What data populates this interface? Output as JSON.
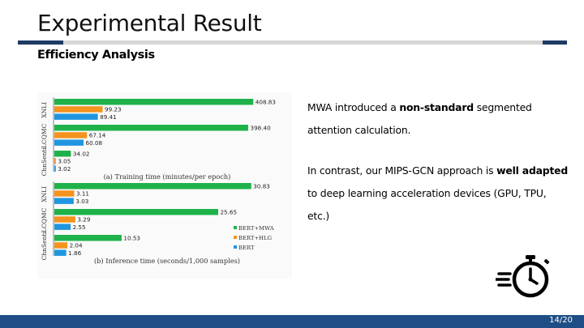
{
  "slide": {
    "title": "Experimental Result",
    "subtitle": "Efficiency Analysis",
    "page": "14/20",
    "colors": {
      "accent": "#1f3b64",
      "footer": "#1f4e86",
      "rule": "#d6d6d6"
    }
  },
  "text": {
    "p1": [
      {
        "t": "MWA introduced a ",
        "b": false
      },
      {
        "t": "non-standard",
        "b": true
      },
      {
        "t": " segmented",
        "b": false
      }
    ],
    "p1b": "attention calculation.",
    "p2": [
      {
        "t": "In contrast, our MIPS-GCN approach is ",
        "b": false
      },
      {
        "t": "well adapted",
        "b": true
      }
    ],
    "p2b": "to deep learning acceleration devices (GPU, TPU,",
    "p2c": "etc.)"
  },
  "icons": {
    "timer": "stopwatch-icon"
  },
  "chart_data": [
    {
      "type": "bar",
      "orientation": "horizontal",
      "caption": "(a) Training time (minutes/per epoch)",
      "categories": [
        "XNLI",
        "LCQMC",
        "ChnSenti"
      ],
      "series": [
        {
          "name": "BERT+MWA",
          "color": "#1fb24a",
          "values": [
            408.83,
            398.4,
            34.02
          ]
        },
        {
          "name": "BERT+HLG",
          "color": "#f4931e",
          "values": [
            99.23,
            67.14,
            3.05
          ]
        },
        {
          "name": "BERT",
          "color": "#2196e0",
          "values": [
            89.41,
            60.08,
            3.02
          ]
        }
      ],
      "value_labels": [
        [
          "408.83",
          "99.23",
          "89.41"
        ],
        [
          "398.40",
          "67.14",
          "60.08"
        ],
        [
          "34.02",
          "3.05",
          "3.02"
        ]
      ],
      "xlim": [
        0,
        420
      ]
    },
    {
      "type": "bar",
      "orientation": "horizontal",
      "caption": "(b) Inference time (seconds/1,000 samples)",
      "categories": [
        "XNLI",
        "LCQMC",
        "ChnSenti"
      ],
      "series": [
        {
          "name": "BERT+MWA",
          "color": "#1fb24a",
          "values": [
            30.83,
            25.65,
            10.53
          ]
        },
        {
          "name": "BERT+HLG",
          "color": "#f4931e",
          "values": [
            3.11,
            3.29,
            2.04
          ]
        },
        {
          "name": "BERT",
          "color": "#2196e0",
          "values": [
            3.03,
            2.55,
            1.86
          ]
        }
      ],
      "value_labels": [
        [
          "30.83",
          "3.11",
          "3.03"
        ],
        [
          "25.65",
          "3.29",
          "2.55"
        ],
        [
          "10.53",
          "2.04",
          "1.86"
        ]
      ],
      "xlim": [
        0,
        32
      ],
      "legend": [
        "BERT+MWA",
        "BERT+HLG",
        "BERT"
      ],
      "legend_position": "right"
    }
  ]
}
